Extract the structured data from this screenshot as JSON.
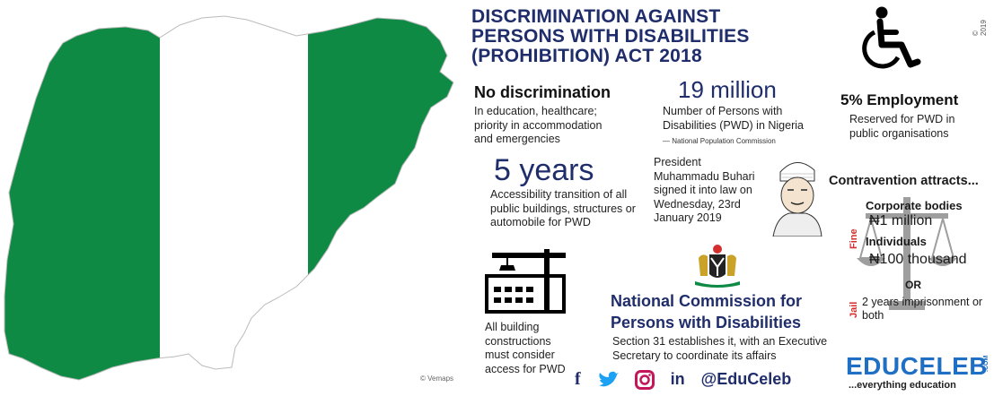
{
  "title": "DISCRIMINATION AGAINST PERSONS WITH DISABILITIES (PROHIBITION) ACT 2018",
  "copyright": "© 2019",
  "map_credit": "© Vemaps",
  "colors": {
    "green": "#0f8a45",
    "navy": "#1f2d6b",
    "red": "#d32f2f"
  },
  "no_discrimination": {
    "heading": "No discrimination",
    "text": "In education, healthcare; priority in accommodation and emergencies"
  },
  "population": {
    "figure": "19 million",
    "text": "Number of Persons with Disabilities (PWD) in Nigeria",
    "source": "— National Population Commission"
  },
  "employment": {
    "heading": "5% Employment",
    "text": "Reserved for PWD in public organisations"
  },
  "accessibility": {
    "figure": "5 years",
    "text": "Accessibility transition of all public buildings, structures or automobile for PWD"
  },
  "president": {
    "text": "President Muhammadu Buhari signed it into law on Wednesday, 23rd January 2019"
  },
  "penalties": {
    "heading": "Contravention attracts...",
    "fine_label": "Fine",
    "jail_label": "Jail",
    "corporate_label": "Corporate bodies",
    "corporate_fine": "₦1 million",
    "individual_label": "Individuals",
    "individual_fine": "₦100 thousand",
    "or": "OR",
    "jail_text": "2 years imprisonment or both"
  },
  "building": {
    "text": "All building constructions must consider access for PWD"
  },
  "commission": {
    "heading": "National Commission for Persons with Disabilities",
    "text": "Section 31 establishes it, with an Executive Secretary to coordinate its affairs"
  },
  "social": {
    "handle": "@EduCeleb",
    "icons": [
      "facebook-icon",
      "twitter-icon",
      "instagram-icon",
      "linkedin-icon"
    ]
  },
  "brand": {
    "name": "EDUCELEB",
    "suffix": ".COM",
    "tagline": "...everything education"
  }
}
